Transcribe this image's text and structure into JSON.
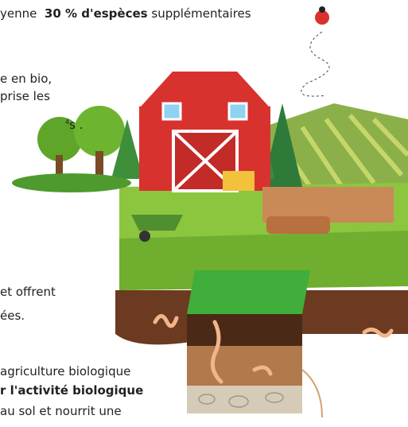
{
  "text_blocks": {
    "top_line": {
      "before": "yenne",
      "bold": "30 % d'espèces",
      "after": "supplémentaires"
    },
    "block_a": {
      "line1": "e en bio,",
      "line2": "prise les",
      "line3": "s .",
      "footnote": "4"
    },
    "block_b": {
      "line1": "et offrent",
      "line2": "ées."
    },
    "block_c": {
      "line1": "agriculture biologique",
      "line2_bold": "r l'activité biologique",
      "line3": "au sol et nourrit une"
    }
  }
}
